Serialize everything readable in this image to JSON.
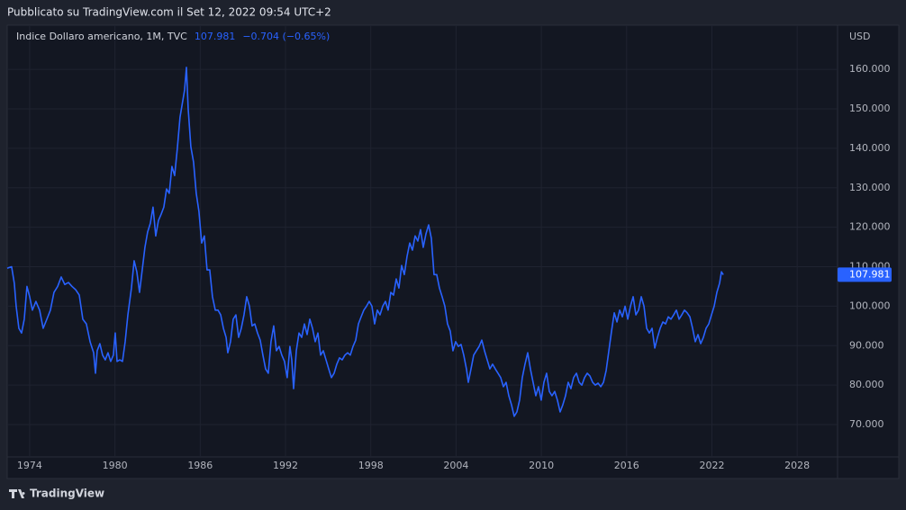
{
  "chart_data": {
    "type": "line",
    "published": "Pubblicato su TradingView.com il Set 12, 2022 09:54 UTC+2",
    "change": "−0.704 (−0.65%)",
    "currency": "USD",
    "brand": "TradingView",
    "grid": true,
    "xlim": [
      1972.42,
      2030.84
    ],
    "xticks": [
      1974,
      1980,
      1986,
      1992,
      1998,
      2004,
      2010,
      2016,
      2022,
      2028
    ],
    "ylim": [
      61.8,
      171.2
    ],
    "yticks": [
      {
        "value": 70,
        "label": "70.000"
      },
      {
        "value": 80,
        "label": "80.000"
      },
      {
        "value": 90,
        "label": "90.000"
      },
      {
        "value": 100,
        "label": "100.000"
      },
      {
        "value": 110,
        "label": "110.000"
      },
      {
        "value": 120,
        "label": "120.000"
      },
      {
        "value": 130,
        "label": "130.000"
      },
      {
        "value": 140,
        "label": "140.000"
      },
      {
        "value": 150,
        "label": "150.000"
      },
      {
        "value": 160,
        "label": "160.000"
      }
    ],
    "x": [
      1972.42,
      1972.73,
      1972.92,
      1973.05,
      1973.24,
      1973.43,
      1973.62,
      1973.81,
      1974.0,
      1974.19,
      1974.44,
      1974.7,
      1974.95,
      1975.21,
      1975.46,
      1975.71,
      1975.97,
      1976.22,
      1976.47,
      1976.73,
      1976.98,
      1977.23,
      1977.49,
      1977.74,
      1977.99,
      1978.25,
      1978.5,
      1978.63,
      1978.75,
      1978.94,
      1979.13,
      1979.32,
      1979.51,
      1979.7,
      1979.89,
      1980.02,
      1980.15,
      1980.34,
      1980.53,
      1980.72,
      1980.91,
      1981.16,
      1981.35,
      1981.54,
      1981.73,
      1981.92,
      1982.11,
      1982.3,
      1982.49,
      1982.68,
      1982.87,
      1983.06,
      1983.25,
      1983.44,
      1983.63,
      1983.82,
      1984.01,
      1984.2,
      1984.39,
      1984.58,
      1984.77,
      1984.9,
      1985.03,
      1985.15,
      1985.34,
      1985.53,
      1985.72,
      1985.91,
      1986.1,
      1986.29,
      1986.48,
      1986.67,
      1986.86,
      1987.06,
      1987.25,
      1987.44,
      1987.63,
      1987.82,
      1987.94,
      1988.13,
      1988.32,
      1988.51,
      1988.7,
      1988.89,
      1989.08,
      1989.27,
      1989.46,
      1989.65,
      1989.84,
      1990.03,
      1990.22,
      1990.41,
      1990.6,
      1990.79,
      1990.98,
      1991.17,
      1991.36,
      1991.55,
      1991.74,
      1991.93,
      1992.12,
      1992.31,
      1992.44,
      1992.57,
      1992.76,
      1992.95,
      1993.14,
      1993.33,
      1993.52,
      1993.71,
      1993.9,
      1994.09,
      1994.28,
      1994.47,
      1994.66,
      1994.85,
      1995.04,
      1995.23,
      1995.42,
      1995.61,
      1995.8,
      1995.99,
      1996.18,
      1996.37,
      1996.56,
      1996.75,
      1996.94,
      1997.13,
      1997.32,
      1997.51,
      1997.7,
      1997.89,
      1998.08,
      1998.27,
      1998.46,
      1998.65,
      1998.84,
      1999.03,
      1999.22,
      1999.41,
      1999.6,
      1999.79,
      1999.98,
      2000.17,
      2000.36,
      2000.55,
      2000.74,
      2000.93,
      2001.12,
      2001.31,
      2001.5,
      2001.69,
      2001.88,
      2002.07,
      2002.26,
      2002.45,
      2002.64,
      2002.83,
      2003.02,
      2003.21,
      2003.4,
      2003.59,
      2003.78,
      2003.97,
      2004.16,
      2004.35,
      2004.54,
      2004.73,
      2004.86,
      2005.05,
      2005.24,
      2005.43,
      2005.62,
      2005.81,
      2006.0,
      2006.19,
      2006.38,
      2006.57,
      2006.76,
      2006.95,
      2007.14,
      2007.33,
      2007.52,
      2007.71,
      2007.9,
      2008.09,
      2008.28,
      2008.47,
      2008.66,
      2008.85,
      2009.04,
      2009.23,
      2009.42,
      2009.61,
      2009.8,
      2009.99,
      2010.18,
      2010.37,
      2010.56,
      2010.75,
      2010.94,
      2011.13,
      2011.32,
      2011.51,
      2011.7,
      2011.89,
      2012.08,
      2012.27,
      2012.47,
      2012.66,
      2012.85,
      2013.04,
      2013.23,
      2013.42,
      2013.61,
      2013.8,
      2013.99,
      2014.18,
      2014.37,
      2014.56,
      2014.75,
      2014.94,
      2015.13,
      2015.32,
      2015.51,
      2015.7,
      2015.89,
      2016.08,
      2016.27,
      2016.46,
      2016.65,
      2016.84,
      2017.03,
      2017.22,
      2017.41,
      2017.6,
      2017.79,
      2017.98,
      2018.17,
      2018.36,
      2018.55,
      2018.74,
      2018.93,
      2019.12,
      2019.31,
      2019.5,
      2019.69,
      2019.88,
      2020.07,
      2020.26,
      2020.45,
      2020.64,
      2020.83,
      2021.02,
      2021.21,
      2021.4,
      2021.59,
      2021.78,
      2021.97,
      2022.16,
      2022.35,
      2022.54,
      2022.67,
      2022.8
    ],
    "series": [
      {
        "name": "Indice Dollaro americano, 1M, TVC",
        "color": "#2962ff",
        "values": [
          109.6,
          110,
          105.8,
          100,
          94.4,
          93.2,
          96.7,
          105,
          102.4,
          99,
          101.2,
          99,
          94.4,
          96.7,
          99,
          103.5,
          105,
          107.4,
          105.5,
          106,
          105,
          104.2,
          102.8,
          96.7,
          95.5,
          91,
          88.2,
          83,
          88.7,
          90.5,
          87.6,
          86.4,
          88.2,
          86,
          87.6,
          93.2,
          86,
          86.4,
          86,
          91,
          97.8,
          104.6,
          111.5,
          108.7,
          103.5,
          109.2,
          114.9,
          118.8,
          121,
          125.1,
          117.8,
          121.7,
          123.3,
          125.1,
          129.7,
          128.6,
          135.4,
          133.1,
          140,
          147.9,
          152,
          154.8,
          160.5,
          150.2,
          140.4,
          136.5,
          128.6,
          124,
          116,
          117.8,
          109.2,
          109.2,
          102.4,
          99,
          99,
          97.8,
          94.4,
          92.1,
          88.2,
          91,
          96.7,
          97.8,
          92.1,
          94.4,
          97.8,
          102.4,
          100,
          95,
          95.5,
          93.2,
          91.4,
          87.6,
          84.1,
          83,
          91,
          95,
          88.7,
          89.8,
          87.6,
          86,
          81.9,
          89.8,
          86.4,
          79.1,
          88.7,
          93.2,
          92.1,
          95.5,
          92.8,
          96.7,
          94.4,
          91,
          93.2,
          87.6,
          88.7,
          86.4,
          84.1,
          81.9,
          83,
          85.3,
          86.9,
          86.4,
          87.6,
          88.2,
          87.6,
          89.8,
          91.4,
          95.5,
          97.3,
          99,
          100,
          101.2,
          100,
          95.5,
          99,
          97.8,
          100,
          101.2,
          99,
          103.5,
          102.8,
          106.9,
          104.6,
          110.3,
          108,
          112.6,
          116,
          114.2,
          117.8,
          116.5,
          119.4,
          114.9,
          118.3,
          120.6,
          117.2,
          108,
          108,
          104.6,
          102.4,
          100,
          95.5,
          93.7,
          88.7,
          91,
          89.8,
          90.3,
          87.6,
          84.1,
          80.7,
          84.1,
          87.6,
          88.7,
          89.8,
          91.4,
          88.7,
          86.4,
          84.1,
          85.3,
          84.1,
          83,
          81.9,
          79.6,
          80.7,
          77.3,
          75,
          72.1,
          73.2,
          76.2,
          81.9,
          85.3,
          88.2,
          84.1,
          80.7,
          77.3,
          79.6,
          76.2,
          80.7,
          83,
          78.4,
          77.3,
          78.4,
          76.2,
          73.2,
          75,
          77.3,
          80.7,
          79.1,
          81.9,
          83,
          80.7,
          80,
          81.9,
          83,
          82.3,
          80.7,
          80,
          80.5,
          79.6,
          80.7,
          83.7,
          88.7,
          93.7,
          98.3,
          96,
          99,
          97.3,
          100,
          96.7,
          100,
          102.4,
          97.8,
          99,
          102.4,
          100,
          94.4,
          93.2,
          94.4,
          89.4,
          92.1,
          94.4,
          96,
          95.5,
          97.3,
          96.7,
          97.8,
          99,
          96.7,
          97.8,
          99,
          98.3,
          97.3,
          94.4,
          91,
          92.8,
          90.5,
          92.1,
          94.4,
          95.5,
          97.8,
          100,
          103.5,
          105.8,
          108.7,
          107.981
        ]
      }
    ]
  }
}
